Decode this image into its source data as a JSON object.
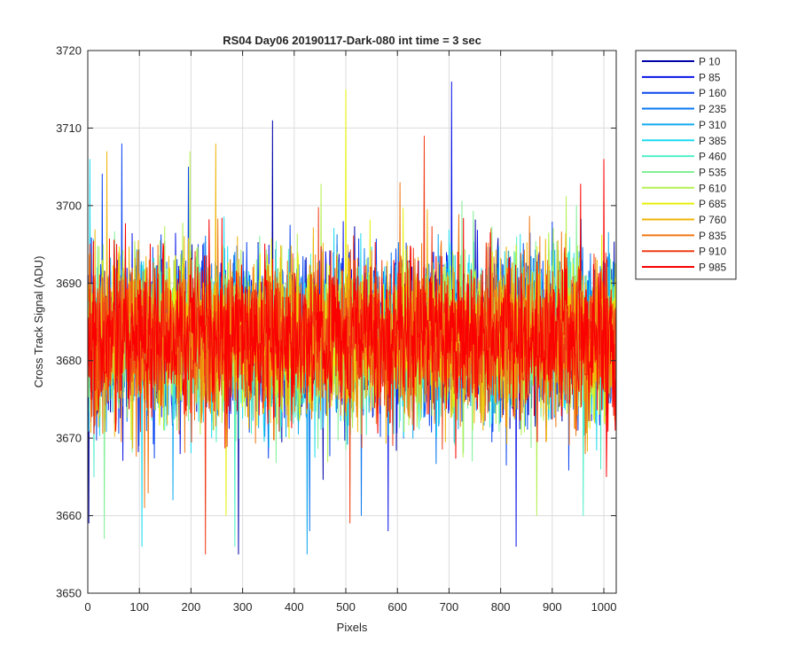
{
  "chart_data": {
    "type": "line",
    "title": "RS04 Day06 20190117-Dark-080 int time = 3 sec",
    "xlabel": "Pixels",
    "ylabel": "Cross Track Signal (ADU)",
    "xlim": [
      0,
      1024
    ],
    "ylim": [
      3650,
      3720
    ],
    "xticks": [
      0,
      100,
      200,
      300,
      400,
      500,
      600,
      700,
      800,
      900,
      1000
    ],
    "yticks": [
      3650,
      3660,
      3670,
      3680,
      3690,
      3700,
      3710,
      3720
    ],
    "grid": true,
    "legend_position": "outside-top-right",
    "x_range_points": [
      1,
      1024
    ],
    "noise_description": "dark frame noise around 3683 ADU",
    "series": [
      {
        "name": "P 10",
        "color": "#0000aa",
        "spikes": [
          [
            358,
            3711
          ],
          [
            2,
            3659
          ],
          [
            292,
            3655
          ]
        ]
      },
      {
        "name": "P 85",
        "color": "#0a14e6",
        "spikes": [
          [
            705,
            3716
          ],
          [
            830,
            3656
          ],
          [
            582,
            3658
          ]
        ]
      },
      {
        "name": "P 160",
        "color": "#0a46f0",
        "spikes": [
          [
            66,
            3708
          ],
          [
            195,
            3705
          ]
        ]
      },
      {
        "name": "P 235",
        "color": "#0a78f0",
        "spikes": [
          [
            430,
            3658
          ],
          [
            530,
            3660
          ]
        ]
      },
      {
        "name": "P 310",
        "color": "#14aaf0",
        "spikes": [
          [
            425,
            3655
          ],
          [
            165,
            3662
          ]
        ]
      },
      {
        "name": "P 385",
        "color": "#1edcf0",
        "spikes": [
          [
            4,
            3706
          ],
          [
            105,
            3656
          ]
        ]
      },
      {
        "name": "P 460",
        "color": "#50f0c8",
        "spikes": [
          [
            285,
            3656
          ],
          [
            960,
            3660
          ]
        ]
      },
      {
        "name": "P 535",
        "color": "#82f096",
        "spikes": [
          [
            32,
            3657
          ],
          [
            745,
            3667
          ]
        ]
      },
      {
        "name": "P 610",
        "color": "#b4f050",
        "spikes": [
          [
            198,
            3707
          ],
          [
            870,
            3660
          ]
        ]
      },
      {
        "name": "P 685",
        "color": "#e6f00a",
        "spikes": [
          [
            500,
            3715
          ],
          [
            268,
            3660
          ]
        ]
      },
      {
        "name": "P 760",
        "color": "#f0b40a",
        "spikes": [
          [
            37,
            3707
          ],
          [
            248,
            3708
          ]
        ]
      },
      {
        "name": "P 835",
        "color": "#f07814",
        "spikes": [
          [
            605,
            3703
          ],
          [
            110,
            3661
          ]
        ]
      },
      {
        "name": "P 910",
        "color": "#f03c14",
        "spikes": [
          [
            652,
            3709
          ],
          [
            228,
            3655
          ],
          [
            508,
            3659
          ]
        ]
      },
      {
        "name": "P 985",
        "color": "#fa0000",
        "spikes": [
          [
            1000,
            3706
          ],
          [
            1005,
            3665
          ]
        ]
      }
    ]
  }
}
